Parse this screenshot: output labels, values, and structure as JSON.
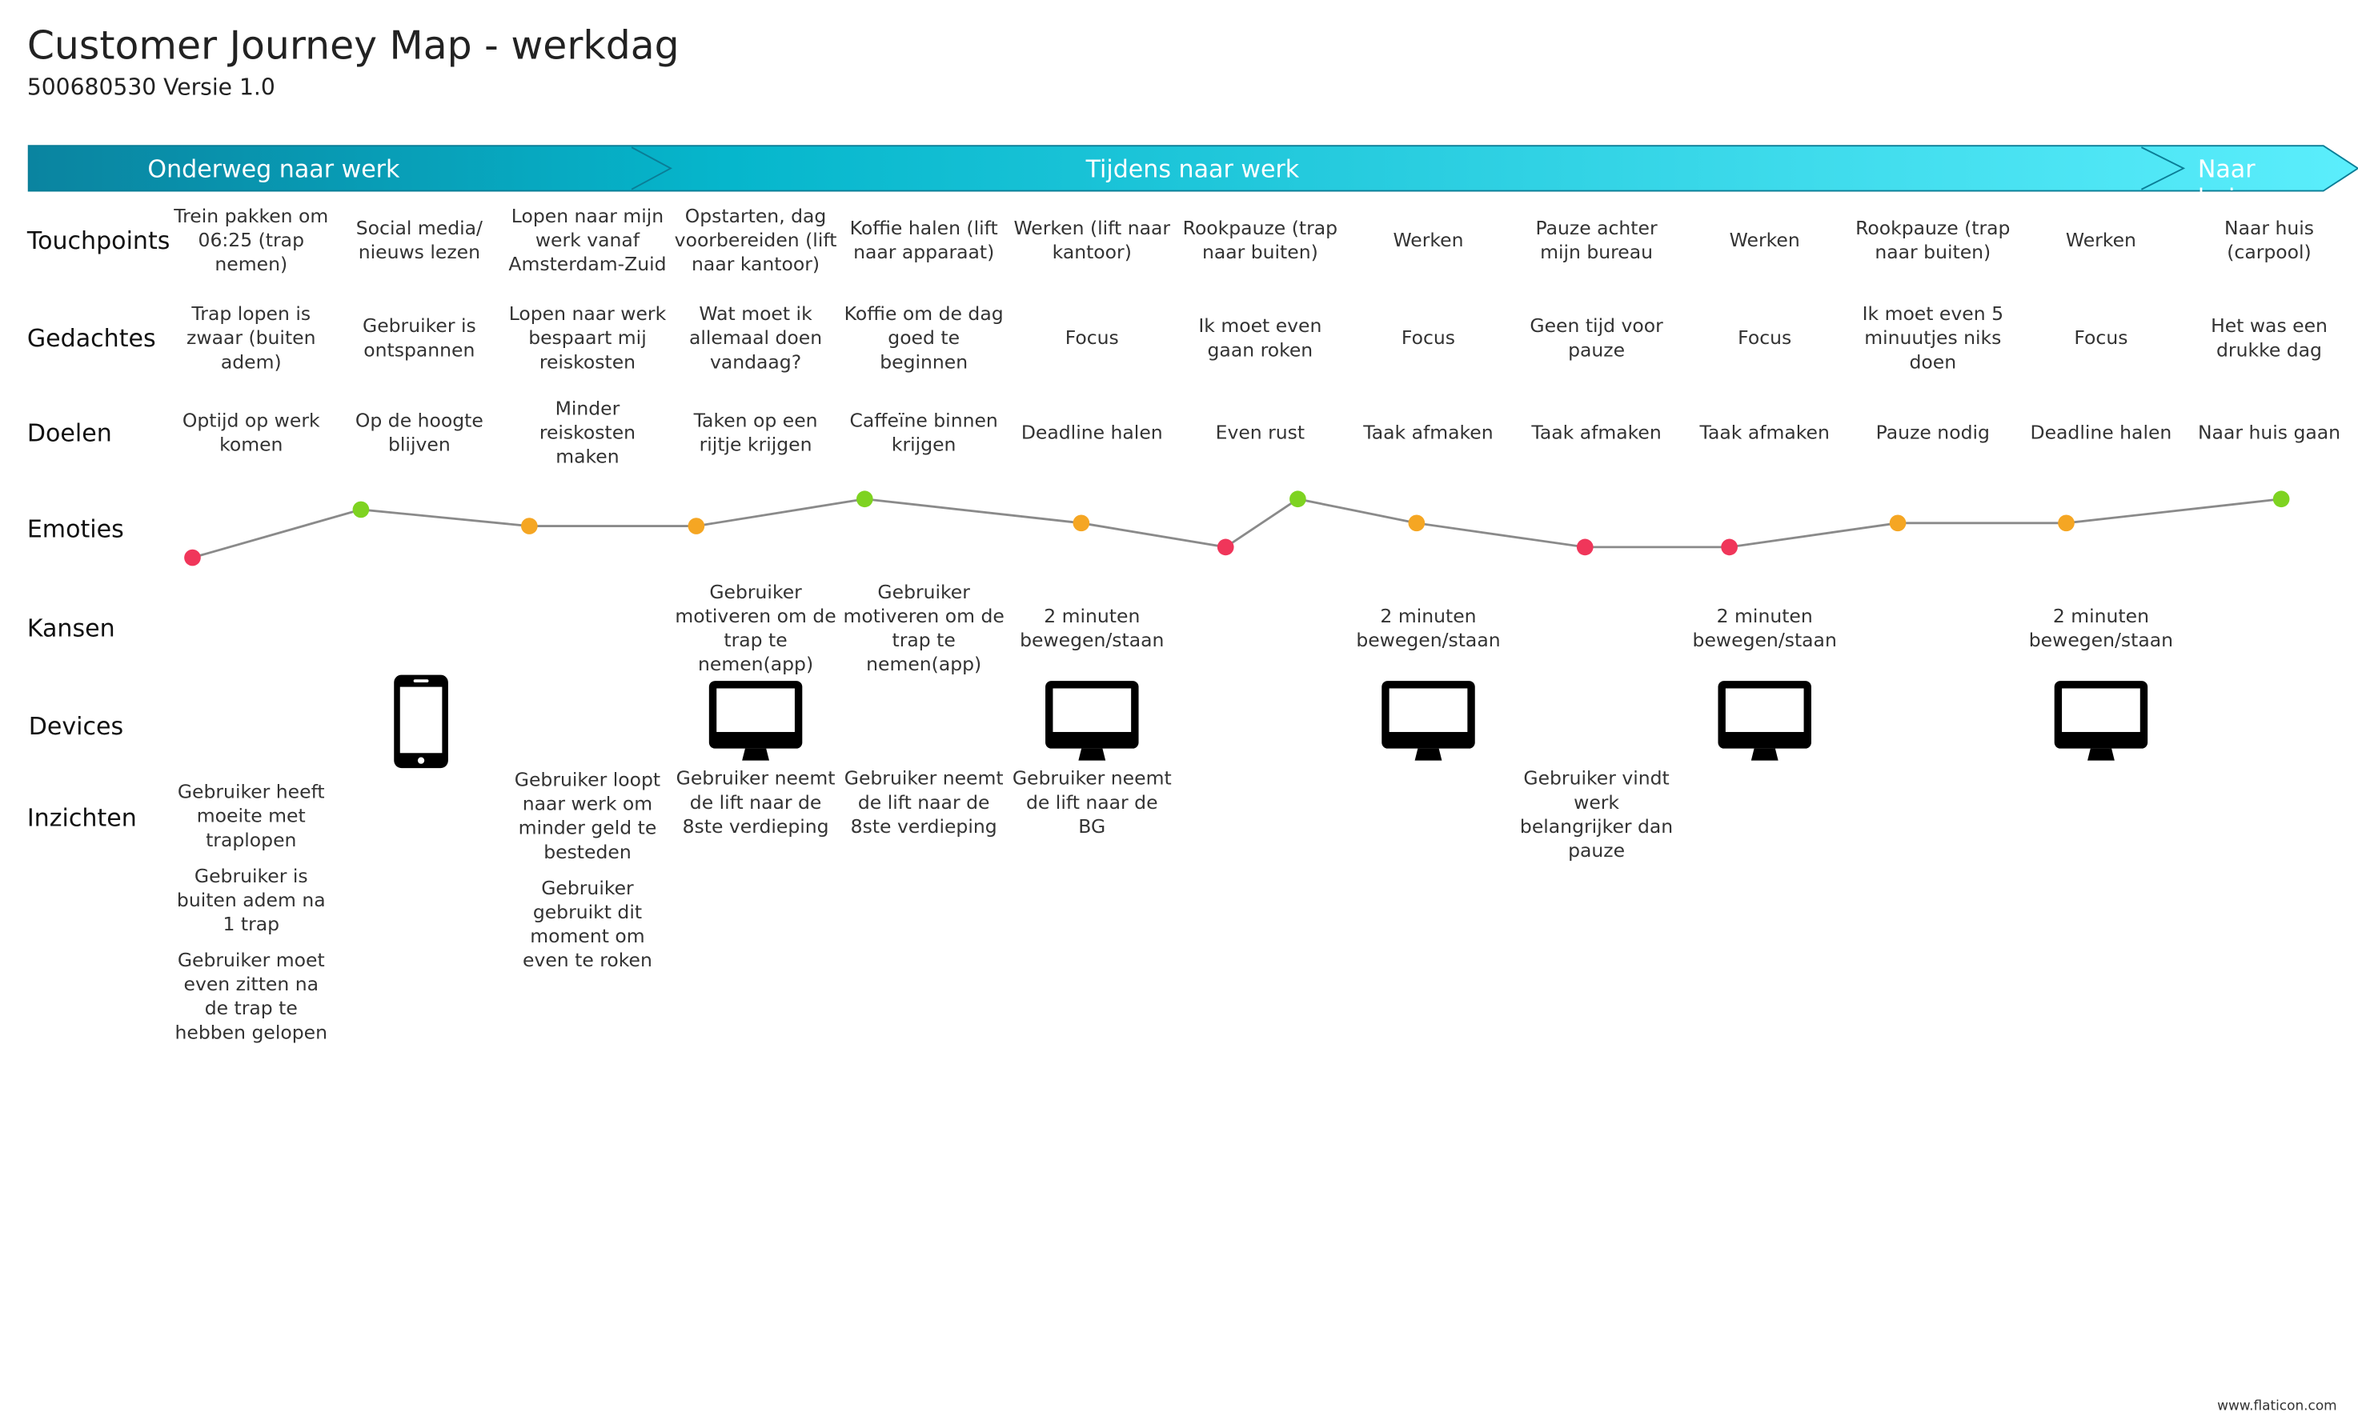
{
  "header": {
    "title": "Customer Journey Map - werkdag",
    "subtitle": "500680530 Versie 1.0"
  },
  "phases": [
    "Onderweg naar werk",
    "Tijdens naar werk",
    "Naar huis"
  ],
  "row_labels": [
    "Touchpoints",
    "Gedachtes",
    "Doelen",
    "Emoties",
    "Kansen",
    "Devices",
    "Inzichten"
  ],
  "columns": [
    {
      "touchpoint": "Trein pakken om 06:25 (trap nemen)",
      "thought": "Trap lopen is zwaar (buiten adem)",
      "goal": "Optijd op werk komen",
      "insights": [
        "Gebruiker heeft moeite met traplopen",
        "Gebruiker is buiten adem na 1 trap",
        "Gebruiker moet even zitten na de trap te hebben gelopen"
      ]
    },
    {
      "touchpoint": "Social media/ nieuws lezen",
      "thought": "Gebruiker is ontspannen",
      "goal": "Op de hoogte blijven"
    },
    {
      "touchpoint": "Lopen naar mijn werk vanaf Amsterdam-Zuid",
      "thought": "Lopen naar werk bespaart mij reiskosten",
      "goal": "Minder reiskosten maken",
      "insights": [
        "Gebruiker loopt naar werk om minder geld te besteden",
        "Gebruiker gebruikt dit moment om even te roken"
      ]
    },
    {
      "touchpoint": "Opstarten, dag voorbereiden (lift naar kantoor)",
      "thought": "Wat moet ik allemaal doen vandaag?",
      "goal": "Taken op een rijtje krijgen",
      "chance": "Gebruiker motiveren om de trap te nemen(app)",
      "insights": [
        "Gebruiker neemt de lift naar de 8ste verdieping"
      ]
    },
    {
      "touchpoint": "Koffie halen (lift naar apparaat)",
      "thought": "Koffie om de dag goed te beginnen",
      "goal": "Caffeïne binnen krijgen",
      "chance": "Gebruiker motiveren om de trap te nemen(app)",
      "insights": [
        "Gebruiker neemt de lift naar de 8ste verdieping"
      ]
    },
    {
      "touchpoint": "Werken (lift naar kantoor)",
      "thought": "Focus",
      "goal": "Deadline halen",
      "chance": "2 minuten bewegen/staan",
      "insights": [
        "Gebruiker neemt de lift naar de BG"
      ]
    },
    {
      "touchpoint": "Rookpauze (trap naar buiten)",
      "thought": "Ik moet even gaan roken",
      "goal": "Even rust"
    },
    {
      "touchpoint": "Werken",
      "thought": "Focus",
      "goal": "Taak afmaken",
      "chance": "2 minuten bewegen/staan"
    },
    {
      "touchpoint": "Pauze achter mijn bureau",
      "thought": "Geen tijd voor pauze",
      "goal": "Taak afmaken",
      "insights": [
        "Gebruiker vindt werk belangrijker dan pauze"
      ]
    },
    {
      "touchpoint": "Werken",
      "thought": "Focus",
      "goal": "Taak afmaken",
      "chance": "2 minuten bewegen/staan"
    },
    {
      "touchpoint": "Rookpauze (trap naar buiten)",
      "thought": "Ik moet even 5 minuutjes niks doen",
      "goal": "Pauze nodig"
    },
    {
      "touchpoint": "Werken",
      "thought": "Focus",
      "goal": "Deadline halen",
      "chance": "2 minuten bewegen/staan"
    },
    {
      "touchpoint": "Naar huis (carpool)",
      "thought": "Het was een drukke dag",
      "goal": "Naar huis gaan"
    }
  ],
  "footer": "www.flaticon.com"
}
